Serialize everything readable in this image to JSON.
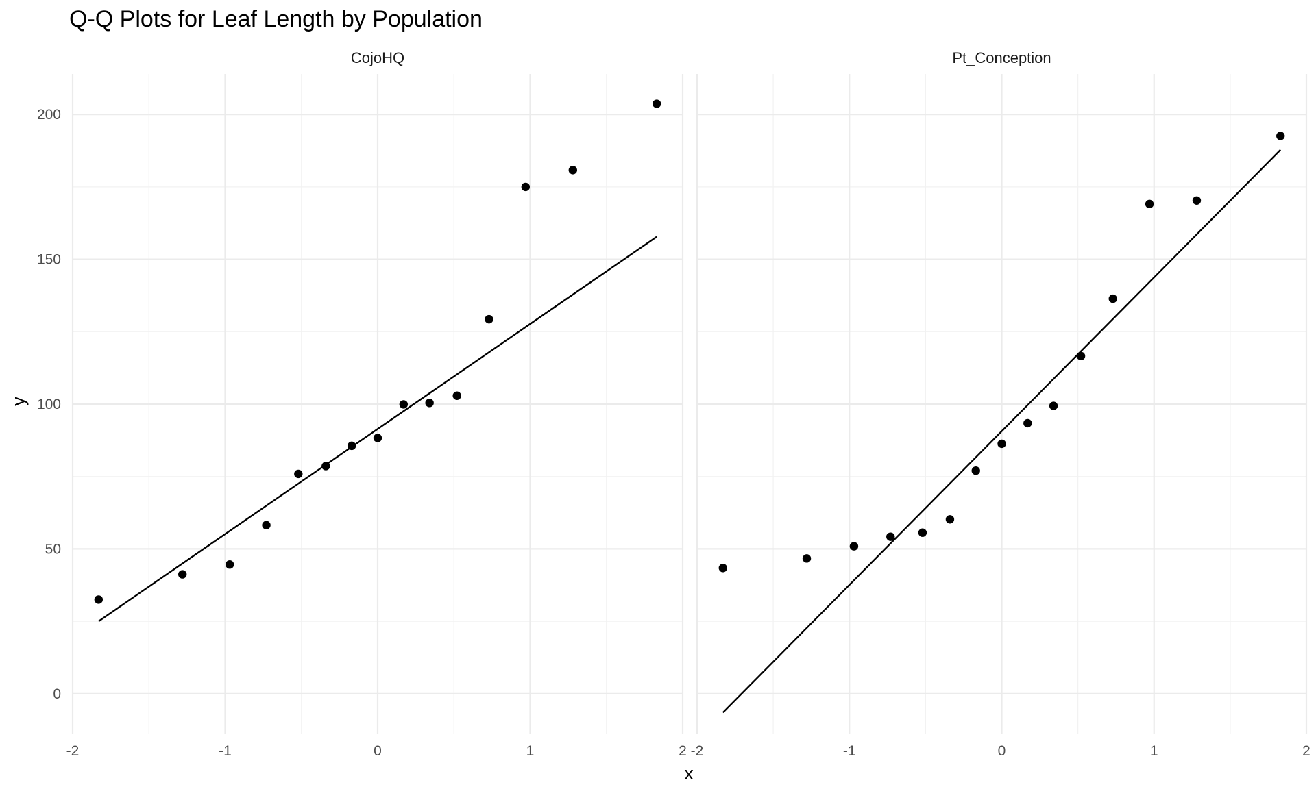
{
  "chart_data": {
    "type": "scatter",
    "title": "Q-Q Plots for Leaf Length by Population",
    "xlabel": "x",
    "ylabel": "y",
    "xlim": [
      -1.85,
      1.85
    ],
    "ylim": [
      -14,
      214
    ],
    "x_ticks": [
      -2,
      -1,
      0,
      1,
      2
    ],
    "y_ticks": [
      0,
      50,
      100,
      150,
      200
    ],
    "grid": true,
    "panels": [
      {
        "name": "CojoHQ",
        "points": [
          {
            "x": -1.83,
            "y": 32.5
          },
          {
            "x": -1.28,
            "y": 41.2
          },
          {
            "x": -0.97,
            "y": 44.6
          },
          {
            "x": -0.73,
            "y": 58.2
          },
          {
            "x": -0.52,
            "y": 75.9
          },
          {
            "x": -0.34,
            "y": 78.6
          },
          {
            "x": -0.17,
            "y": 85.6
          },
          {
            "x": 0.0,
            "y": 88.3
          },
          {
            "x": 0.17,
            "y": 99.9
          },
          {
            "x": 0.34,
            "y": 100.4
          },
          {
            "x": 0.52,
            "y": 102.9
          },
          {
            "x": 0.73,
            "y": 129.3
          },
          {
            "x": 0.97,
            "y": 175.0
          },
          {
            "x": 1.28,
            "y": 180.8
          },
          {
            "x": 1.83,
            "y": 203.7
          }
        ],
        "line": {
          "x1": -1.83,
          "y1": 25.0,
          "x2": 1.83,
          "y2": 157.8
        }
      },
      {
        "name": "Pt_Conception",
        "points": [
          {
            "x": -1.83,
            "y": 43.4
          },
          {
            "x": -1.28,
            "y": 46.7
          },
          {
            "x": -0.97,
            "y": 50.9
          },
          {
            "x": -0.73,
            "y": 54.2
          },
          {
            "x": -0.52,
            "y": 55.6
          },
          {
            "x": -0.34,
            "y": 60.2
          },
          {
            "x": -0.17,
            "y": 77.0
          },
          {
            "x": 0.0,
            "y": 86.3
          },
          {
            "x": 0.17,
            "y": 93.4
          },
          {
            "x": 0.34,
            "y": 99.4
          },
          {
            "x": 0.52,
            "y": 116.6
          },
          {
            "x": 0.73,
            "y": 136.4
          },
          {
            "x": 0.97,
            "y": 169.1
          },
          {
            "x": 1.28,
            "y": 170.3
          },
          {
            "x": 1.83,
            "y": 192.6
          }
        ],
        "line": {
          "x1": -1.83,
          "y1": -6.5,
          "x2": 1.83,
          "y2": 187.8
        }
      }
    ]
  }
}
